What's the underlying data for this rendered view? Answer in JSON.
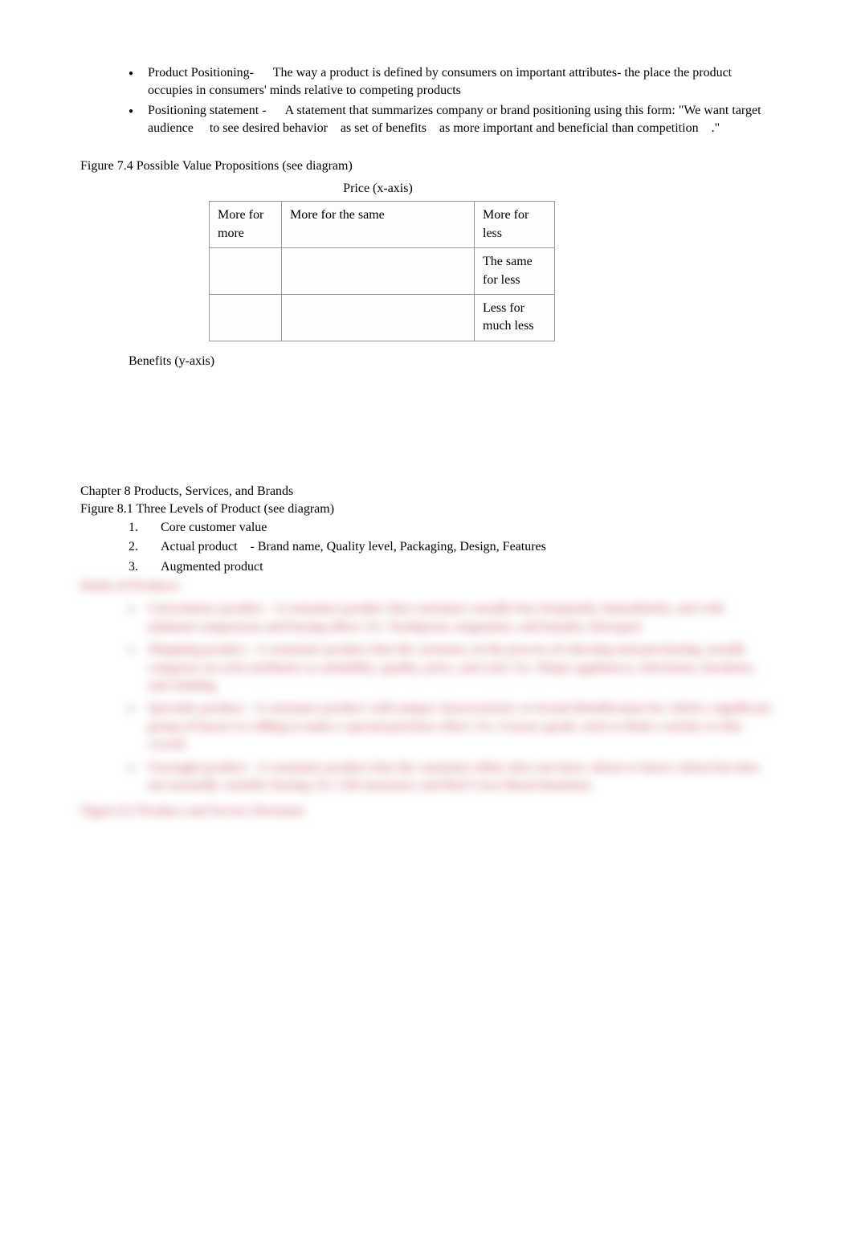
{
  "bullets": {
    "positioning": {
      "term": "Product Positioning-",
      "def": "The way a product is defined by consumers on important attributes- the place the product occupies in consumers' minds relative to competing products"
    },
    "statement": {
      "term": "Positioning statement -",
      "def_part1": "A statement that summarizes company or brand positioning using this form: \"We want",
      "target": "target audience",
      "def_part2": "to see",
      "behavior": "desired behavior",
      "def_part3": "as",
      "benefits": "set of benefits",
      "def_part4": "as more important and beneficial than",
      "competition": "competition",
      "def_part5": ".\""
    }
  },
  "figure74": {
    "title": "Figure 7.4 Possible Value Propositions (see diagram)",
    "x_axis": "Price (x-axis)",
    "y_axis": "Benefits (y-axis)",
    "cells": {
      "r1c1": "More for more",
      "r1c2": "More for the same",
      "r1c3": "More for less",
      "r2c1": "",
      "r2c2": "",
      "r2c3": "The same for less",
      "r3c1": "",
      "r3c2": "",
      "r3c3": "Less for much less"
    }
  },
  "chapter8": {
    "title": "Chapter 8 Products, Services, and Brands",
    "fig81": "Figure 8.1 Three Levels of Product (see diagram)",
    "items": {
      "n1": "1.",
      "t1": "Core customer value",
      "n2": "2.",
      "t2_term": "Actual product",
      "t2_def": "- Brand name, Quality level, Packaging, Design, Features",
      "n3": "3.",
      "t3": "Augmented product"
    }
  },
  "blurred": {
    "l0": "Kinds of Products",
    "l1": "Convenience product - A consumer product that customers usually buy frequently, immediately, and with minimal comparison and buying effort. Ex: Toothpaste, magazines, and laundry detergent",
    "l2": "Shopping product - A consumer product that the customer, in the process of selecting and purchasing, usually compares on such attributes as suitability, quality, price, and style. Ex: Major appliances, televisions, furniture, and clothing",
    "l3": "Specialty product - A consumer product with unique characteristics or brand identification for which a significant group of buyers is willing to make a special purchase effort. Ex: Luxury goods, such as Rolex watches or fine crystal",
    "l4": "Unsought product - A consumer product that the consumer either does not know about or knows about but does not normally consider buying. Ex: Life insurance and Red Cross blood donations",
    "l5": "Figure 8.2 Product and Service Decisions"
  }
}
